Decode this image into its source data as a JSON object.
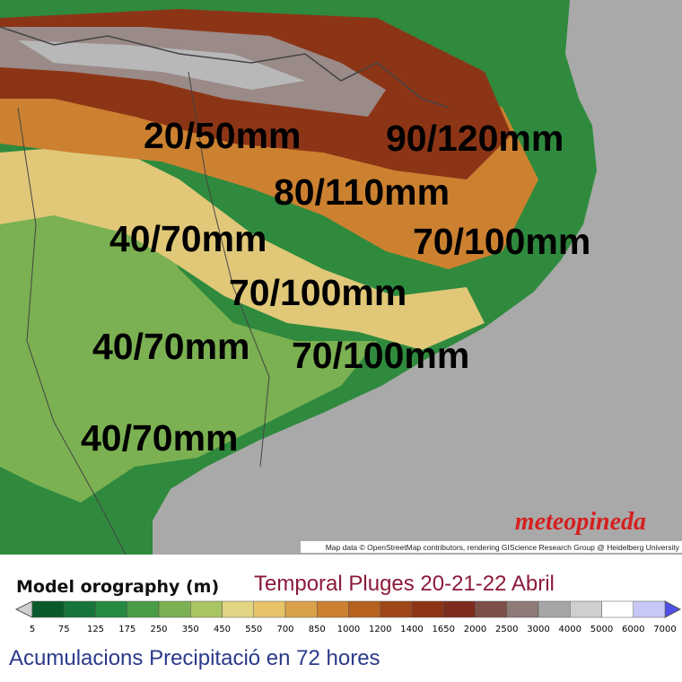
{
  "map": {
    "labels": [
      "20/50mm",
      "90/120mm",
      "80/110mm",
      "40/70mm",
      "70/100mm",
      "70/100mm",
      "40/70mm",
      "70/100mm",
      "40/70mm"
    ],
    "attribution": "Map data © OpenStreetMap contributors, rendering GIScience Research Group @ Heidelberg University",
    "logo": "meteopineda"
  },
  "legend": {
    "title": "Model orography (m)",
    "subtitle": "Temporal Pluges 20-21-22 Abril",
    "ticks": [
      5,
      75,
      125,
      175,
      250,
      350,
      450,
      550,
      700,
      850,
      1000,
      1200,
      1400,
      1650,
      2000,
      2500,
      3000,
      4000,
      5000,
      6000,
      7000
    ],
    "colors": [
      "#d0d0d0",
      "#0b5a2b",
      "#16753a",
      "#258a40",
      "#4a9d47",
      "#7bb152",
      "#a9c462",
      "#e1d583",
      "#e7c36a",
      "#d9a24a",
      "#cc8130",
      "#b7611f",
      "#9f4718",
      "#8c3516",
      "#7d2c1c",
      "#7c5048",
      "#8e7a77",
      "#a6a6a6",
      "#cfcfcf",
      "#ffffff",
      "#c8c8f6",
      "#9090f0",
      "#5050e8"
    ]
  },
  "footer": {
    "caption": "Acumulacions Precipitació en 72 hores"
  }
}
